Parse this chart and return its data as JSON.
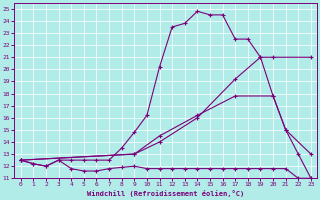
{
  "xlabel": "Windchill (Refroidissement éolien,°C)",
  "background_color": "#b2ece8",
  "line_color": "#7b007b",
  "xlim": [
    -0.5,
    23.5
  ],
  "ylim": [
    11,
    25.5
  ],
  "yticks": [
    11,
    12,
    13,
    14,
    15,
    16,
    17,
    18,
    19,
    20,
    21,
    22,
    23,
    24,
    25
  ],
  "xticks": [
    0,
    1,
    2,
    3,
    4,
    5,
    6,
    7,
    8,
    9,
    10,
    11,
    12,
    13,
    14,
    15,
    16,
    17,
    18,
    19,
    20,
    21,
    22,
    23
  ],
  "line1_x": [
    0,
    1,
    2,
    3,
    4,
    5,
    6,
    7,
    8,
    9,
    10,
    11,
    12,
    13,
    14,
    15,
    16,
    17,
    18,
    19,
    20,
    21,
    22,
    23
  ],
  "line1_y": [
    12.5,
    12.2,
    12.0,
    12.5,
    11.8,
    11.6,
    11.6,
    11.8,
    11.9,
    12.0,
    11.8,
    11.8,
    11.8,
    11.8,
    11.8,
    11.8,
    11.8,
    11.8,
    11.8,
    11.8,
    11.8,
    11.8,
    11.0,
    11.0
  ],
  "line2_x": [
    0,
    1,
    2,
    3,
    4,
    5,
    6,
    7,
    8,
    9,
    10,
    11,
    12,
    13,
    14,
    15,
    16,
    17,
    18,
    19,
    20,
    21,
    22,
    23
  ],
  "line2_y": [
    12.5,
    12.2,
    12.0,
    12.5,
    12.5,
    12.5,
    12.5,
    12.5,
    13.5,
    14.8,
    16.2,
    20.2,
    23.5,
    23.8,
    24.8,
    24.5,
    24.5,
    22.5,
    22.5,
    21.0,
    17.8,
    15.0,
    13.0,
    11.0
  ],
  "line3_x": [
    0,
    9,
    11,
    14,
    17,
    19,
    20,
    23
  ],
  "line3_y": [
    12.5,
    13.0,
    14.0,
    16.0,
    19.2,
    21.0,
    21.0,
    21.0
  ],
  "line4_x": [
    0,
    9,
    11,
    14,
    17,
    20,
    21,
    23
  ],
  "line4_y": [
    12.5,
    13.0,
    14.5,
    16.2,
    17.8,
    17.8,
    15.0,
    13.0
  ]
}
